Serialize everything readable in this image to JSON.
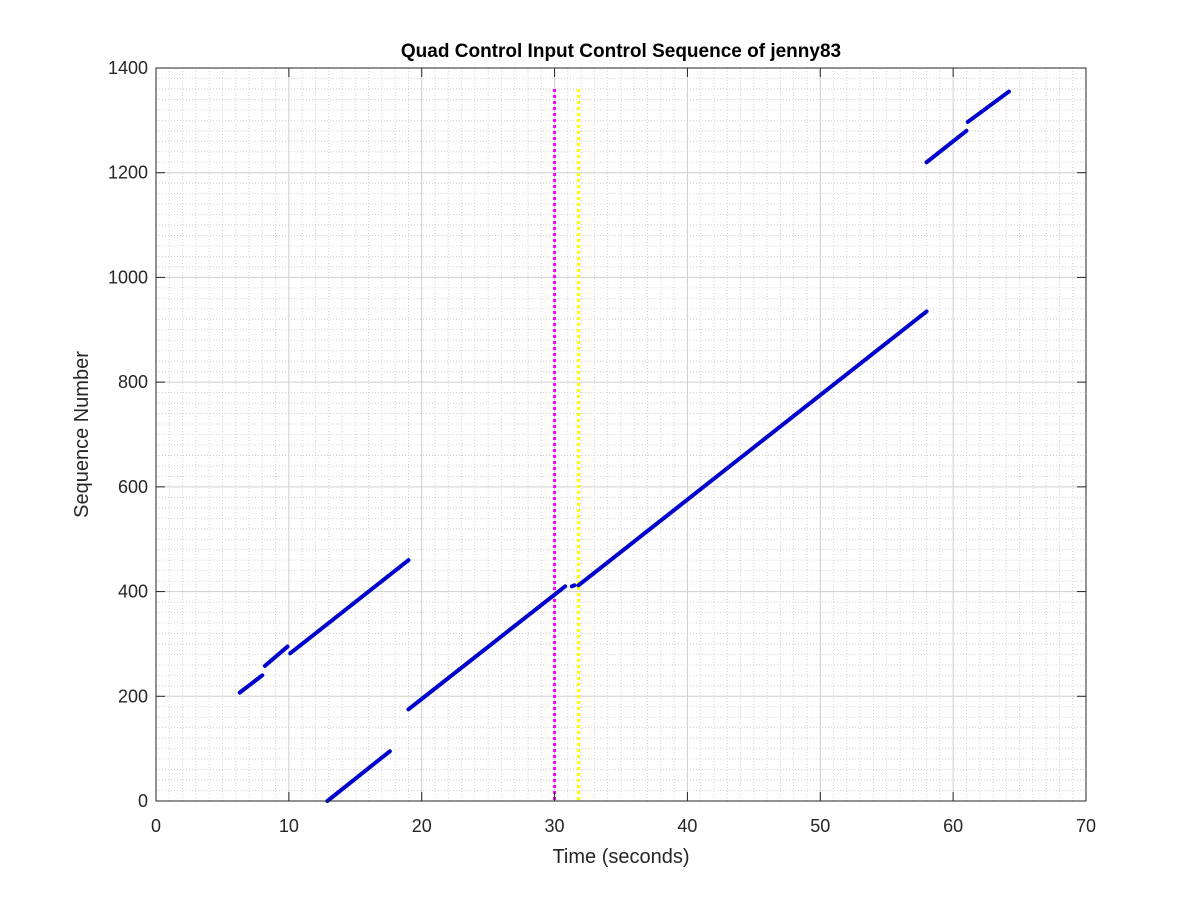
{
  "chart_data": {
    "type": "scatter",
    "title": "Quad Control Input Control Sequence of jenny83",
    "xlabel": "Time (seconds)",
    "ylabel": "Sequence Number",
    "xlim": [
      0,
      70
    ],
    "ylim": [
      0,
      1400
    ],
    "xticks": [
      0,
      10,
      20,
      30,
      40,
      50,
      60,
      70
    ],
    "yticks": [
      0,
      200,
      400,
      600,
      800,
      1000,
      1200,
      1400
    ],
    "grid": "on",
    "minor_grid": "on",
    "series": [
      {
        "color": "#0000cc",
        "segments": [
          {
            "x": [
              6.3,
              8.0
            ],
            "y": [
              207,
              240
            ]
          },
          {
            "x": [
              8.2,
              9.9
            ],
            "y": [
              258,
              295
            ]
          },
          {
            "x": [
              10.1,
              19.0
            ],
            "y": [
              282,
              460
            ]
          },
          {
            "x": [
              12.9,
              17.6
            ],
            "y": [
              0,
              95
            ]
          },
          {
            "x": [
              19.0,
              30.8
            ],
            "y": [
              175,
              410
            ]
          },
          {
            "x": [
              31.3,
              31.5
            ],
            "y": [
              410,
              412
            ]
          },
          {
            "x": [
              31.8,
              58.0
            ],
            "y": [
              412,
              935
            ]
          },
          {
            "x": [
              58.0,
              61.0
            ],
            "y": [
              1220,
              1280
            ]
          },
          {
            "x": [
              61.1,
              64.2
            ],
            "y": [
              1297,
              1355
            ]
          }
        ]
      }
    ],
    "vertical_lines": [
      {
        "x": 30.0,
        "color": "#ff00ff",
        "style": "dotted"
      },
      {
        "x": 31.8,
        "color": "#ffff00",
        "style": "dotted"
      }
    ]
  }
}
